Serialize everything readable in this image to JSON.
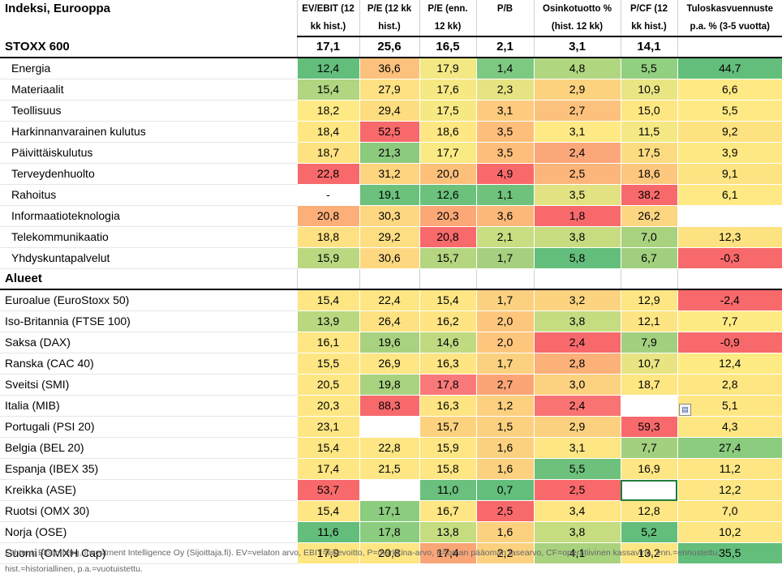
{
  "header": {
    "title": "Indeksi, Eurooppa",
    "columns": [
      [
        "EV/EBIT (12",
        "kk hist.)"
      ],
      [
        "P/E (12 kk",
        "hist.)"
      ],
      [
        "P/E (enn.",
        "12 kk)"
      ],
      [
        "P/B",
        ""
      ],
      [
        "Osinkotuotto %",
        "(hist. 12 kk)"
      ],
      [
        "P/CF (12",
        "kk hist.)"
      ],
      [
        "Tuloskasvuennuste",
        "p.a. % (3-5 vuotta)"
      ]
    ]
  },
  "summary": {
    "label": "STOXX 600",
    "values": [
      "17,1",
      "25,6",
      "16,5",
      "2,1",
      "3,1",
      "14,1",
      ""
    ]
  },
  "sectors": [
    {
      "label": "Energia",
      "values": [
        "12,4",
        "36,6",
        "17,9",
        "1,4",
        "4,8",
        "5,5",
        "44,7"
      ],
      "colors": [
        "#63be7b",
        "#fcc17c",
        "#f3e884",
        "#7ec982",
        "#b0d680",
        "#91cf81",
        "#63be7b"
      ]
    },
    {
      "label": "Materiaalit",
      "values": [
        "15,4",
        "27,9",
        "17,6",
        "2,3",
        "2,9",
        "10,9",
        "6,6"
      ],
      "colors": [
        "#b1d580",
        "#fee182",
        "#f6e984",
        "#e6e383",
        "#fcd27f",
        "#eae583",
        "#ffe985"
      ]
    },
    {
      "label": "Teollisuus",
      "values": [
        "18,2",
        "29,4",
        "17,5",
        "3,1",
        "2,7",
        "15,0",
        "5,5"
      ],
      "colors": [
        "#ffe984",
        "#fedd81",
        "#f6e984",
        "#fecb7e",
        "#fcc17c",
        "#fee683",
        "#ffe984"
      ]
    },
    {
      "label": "Harkinnanvarainen kulutus",
      "values": [
        "18,4",
        "52,5",
        "18,6",
        "3,5",
        "3,1",
        "11,5",
        "9,2"
      ],
      "colors": [
        "#fee683",
        "#f8696b",
        "#fee683",
        "#fdbe7b",
        "#ffe984",
        "#f4e884",
        "#fde281"
      ]
    },
    {
      "label": "Päivittäiskulutus",
      "values": [
        "18,7",
        "21,3",
        "17,7",
        "3,5",
        "2,4",
        "17,5",
        "3,9"
      ],
      "colors": [
        "#fee282",
        "#8cca7e",
        "#f9ea84",
        "#fdbe7b",
        "#fca77a",
        "#fddc81",
        "#fee883"
      ]
    },
    {
      "label": "Terveydenhuolto",
      "values": [
        "22,8",
        "31,2",
        "20,0",
        "4,9",
        "2,5",
        "18,6",
        "9,1"
      ],
      "colors": [
        "#f8696b",
        "#fed47f",
        "#fcc07b",
        "#f8696b",
        "#fcb57a",
        "#fdc77d",
        "#fde381"
      ]
    },
    {
      "label": "Rahoitus",
      "values": [
        "-",
        "19,1",
        "12,6",
        "1,1",
        "3,5",
        "38,2",
        "6,1"
      ],
      "colors": [
        "#ffffff",
        "#6cc17d",
        "#6cc17d",
        "#6fc27c",
        "#e3e283",
        "#f8696b",
        "#ffe984"
      ]
    },
    {
      "label": "Informaatioteknologia",
      "values": [
        "20,8",
        "30,3",
        "20,3",
        "3,6",
        "1,8",
        "26,2",
        ""
      ],
      "colors": [
        "#fdaf79",
        "#fed781",
        "#fba876",
        "#fcb879",
        "#f8696b",
        "#fcd680",
        "#ffffff"
      ]
    },
    {
      "label": "Telekommunikaatio",
      "values": [
        "18,8",
        "29,2",
        "20,8",
        "2,1",
        "3,8",
        "7,0",
        "12,3"
      ],
      "colors": [
        "#fee182",
        "#fede82",
        "#f8696b",
        "#c9dd82",
        "#c7dc81",
        "#a9d27f",
        "#fde281"
      ]
    },
    {
      "label": "Yhdyskuntapalvelut",
      "values": [
        "15,9",
        "30,6",
        "15,7",
        "1,7",
        "5,8",
        "6,7",
        "-0,3"
      ],
      "colors": [
        "#bad880",
        "#fed881",
        "#b5d580",
        "#a6d07f",
        "#63be7b",
        "#a0d07f",
        "#f8696b"
      ]
    }
  ],
  "section_label": "Alueet",
  "regions": [
    {
      "label": "Euroalue (EuroStoxx 50)",
      "values": [
        "15,4",
        "22,4",
        "15,4",
        "1,7",
        "3,2",
        "12,9",
        "-2,4"
      ],
      "colors": [
        "#fde683",
        "#fde683",
        "#fde683",
        "#fbd17f",
        "#fcd37f",
        "#fde683",
        "#f8696b"
      ]
    },
    {
      "label": "Iso-Britannia (FTSE 100)",
      "values": [
        "13,9",
        "26,4",
        "16,2",
        "2,0",
        "3,8",
        "12,1",
        "7,7"
      ],
      "colors": [
        "#bad880",
        "#fee282",
        "#fee482",
        "#fec67c",
        "#c5dc81",
        "#fde583",
        "#ffeb84"
      ]
    },
    {
      "label": "Saksa (DAX)",
      "values": [
        "16,1",
        "19,6",
        "14,6",
        "2,0",
        "2,4",
        "7,9",
        "-0,9"
      ],
      "colors": [
        "#fde683",
        "#a8d27f",
        "#c0da81",
        "#fec67c",
        "#f8696b",
        "#a3d07f",
        "#f8696b"
      ]
    },
    {
      "label": "Ranska (CAC 40)",
      "values": [
        "15,5",
        "26,9",
        "16,3",
        "1,7",
        "2,8",
        "10,7",
        "12,4"
      ],
      "colors": [
        "#fde683",
        "#fde683",
        "#fee482",
        "#fbd17f",
        "#fbb178",
        "#e8e483",
        "#ffeb84"
      ]
    },
    {
      "label": "Sveitsi (SMI)",
      "values": [
        "20,5",
        "19,8",
        "17,8",
        "2,7",
        "3,0",
        "18,7",
        "2,8"
      ],
      "colors": [
        "#fde683",
        "#a9d27f",
        "#f9797a",
        "#fba576",
        "#fcd17f",
        "#fee683",
        "#fee683"
      ]
    },
    {
      "label": "Italia (MIB)",
      "values": [
        "20,3",
        "88,3",
        "16,3",
        "1,2",
        "2,4",
        "",
        " 5,1"
      ],
      "colors": [
        "#fde683",
        "#f8696b",
        "#fee482",
        "#fcd07f",
        "#f87372",
        "#ffffff",
        "#fee683"
      ]
    },
    {
      "label": "Portugali (PSI 20)",
      "values": [
        "23,1",
        "",
        "15,7",
        "1,5",
        "2,9",
        "59,3",
        "4,3"
      ],
      "colors": [
        "#fde683",
        "#ffffff",
        "#fcd27f",
        "#fbd17f",
        "#fbd17f",
        "#f8696b",
        "#fee683"
      ]
    },
    {
      "label": "Belgia (BEL 20)",
      "values": [
        "15,4",
        "22,8",
        "15,9",
        "1,6",
        "3,1",
        "7,7",
        "27,4"
      ],
      "colors": [
        "#fde683",
        "#fde683",
        "#fde683",
        "#fbd17f",
        "#fde683",
        "#a3d07f",
        "#8ccc7e"
      ]
    },
    {
      "label": "Espanja (IBEX 35)",
      "values": [
        "17,4",
        "21,5",
        "15,8",
        "1,6",
        "5,5",
        "16,9",
        "11,2"
      ],
      "colors": [
        "#fde683",
        "#fde683",
        "#fde683",
        "#fbd17f",
        "#6dc17c",
        "#fde683",
        "#fde683"
      ]
    },
    {
      "label": "Kreikka (ASE)",
      "values": [
        "53,7",
        "",
        "11,0",
        "0,7",
        "2,5",
        "",
        "12,2"
      ],
      "colors": [
        "#f8696b",
        "#ffffff",
        "#6ac07c",
        "#63be7b",
        "#f8696b",
        "#ffffff",
        "#fde683"
      ]
    },
    {
      "label": "Ruotsi (OMX 30)",
      "values": [
        "15,4",
        "17,1",
        "16,7",
        "2,5",
        "3,4",
        "12,8",
        "7,0"
      ],
      "colors": [
        "#fde683",
        "#8ccc7e",
        "#fde683",
        "#f8696b",
        "#fde683",
        "#fde683",
        "#fee683"
      ]
    },
    {
      "label": "Norja (OSE)",
      "values": [
        "11,6",
        "17,8",
        "13,8",
        "1,6",
        "3,8",
        "5,2",
        "10,2"
      ],
      "colors": [
        "#63be7b",
        "#8ccc7e",
        "#c5dc81",
        "#fbd17f",
        "#c5dc81",
        "#63be7b",
        "#fde683"
      ]
    },
    {
      "label": "Suomi (OMXH Cap)",
      "values": [
        "17,9",
        "20,8",
        "17,4",
        "2,2",
        "4,1",
        "13,2",
        "35,5"
      ],
      "colors": [
        "#fde683",
        "#fde683",
        "#f9a576",
        "#fbd17f",
        "#a9d27f",
        "#fde683",
        "#63be7b"
      ]
    }
  ],
  "source_lines": [
    "Lähteet: Bloomberg, Investment Intelligence Oy (Sijoittaja.fi). EV=velaton arvo, EBIT=liikevoitto, P=markkina-arvo, B=oman pääoman tasearvo, CF=operatiivinen kassavirta, enn.=ennustettu,",
    "hist.=historiallinen, p.a.=vuotuistettu."
  ]
}
